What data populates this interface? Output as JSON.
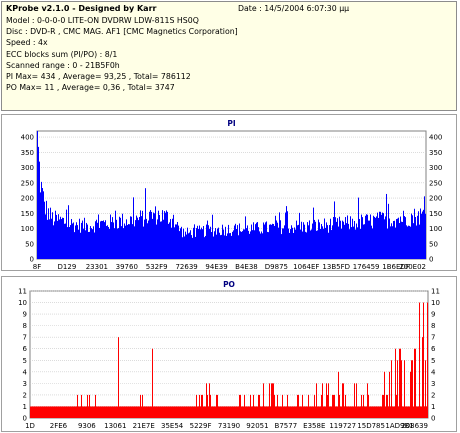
{
  "info": {
    "title": "KProbe v2.1.0 - Designed by Karr",
    "date": "Date : 14/5/2004 6:07:30 μμ",
    "lines": [
      "Model : 0-0-0-0 LITE-ON DVDRW LDW-811S   HS0Q",
      "Disc : DVD-R , CMC MAG. AF1 [CMC Magnetics Corporation]",
      "Speed : 4x",
      "ECC blocks sum (PI/PO) : 8/1",
      "Scanned range : 0 - 21B5F0h",
      "PI Max= 434 , Average= 93,25 , Total= 786112",
      "PO Max= 11 , Average= 0,36 , Total= 3747"
    ]
  },
  "chart_data": [
    {
      "type": "area",
      "title": "PI",
      "ylim": [
        0,
        420
      ],
      "yticks": [
        0,
        50,
        100,
        150,
        200,
        250,
        300,
        350,
        400
      ],
      "yticks_labels": [
        "0",
        "50",
        "100",
        "150",
        "200",
        "250",
        "300",
        "350",
        "400"
      ],
      "xtick_labels": [
        "8F",
        "D129",
        "23301",
        "39760",
        "532F9",
        "72639",
        "94E39",
        "B4E38",
        "D9875",
        "1064EF",
        "13B5FD",
        "176459",
        "1B6EDF",
        "200E02"
      ],
      "color": "#0000ff",
      "grid": true,
      "x": [
        0,
        0.004,
        0.008,
        0.012,
        0.02,
        0.03,
        0.04,
        0.06,
        0.08,
        0.1,
        0.13,
        0.16,
        0.2,
        0.24,
        0.28,
        0.3,
        0.32,
        0.34,
        0.36,
        0.38,
        0.4,
        0.44,
        0.48,
        0.52,
        0.56,
        0.6,
        0.64,
        0.68,
        0.72,
        0.76,
        0.8,
        0.84,
        0.88,
        0.92,
        0.96,
        1.0
      ],
      "y": [
        420,
        320,
        260,
        220,
        175,
        150,
        135,
        130,
        120,
        115,
        112,
        118,
        125,
        130,
        140,
        150,
        145,
        140,
        110,
        85,
        90,
        95,
        100,
        100,
        102,
        105,
        110,
        108,
        112,
        115,
        120,
        125,
        130,
        135,
        140,
        150
      ]
    },
    {
      "type": "bar",
      "title": "PO",
      "ylim": [
        0,
        11
      ],
      "yticks": [
        0,
        1,
        2,
        3,
        4,
        5,
        6,
        7,
        8,
        9,
        10,
        11
      ],
      "yticks_labels": [
        "0",
        "1",
        "2",
        "3",
        "4",
        "5",
        "6",
        "7",
        "8",
        "9",
        "10",
        "11"
      ],
      "xtick_labels": [
        "1D",
        "2FE6",
        "9306",
        "13061",
        "21E7E",
        "35E54",
        "5229F",
        "73190",
        "92051",
        "B7577",
        "E358E",
        "119727",
        "15D785",
        "1AD9B1",
        "208639"
      ],
      "color": "#ff0000",
      "grid": true,
      "x": [
        0,
        0.05,
        0.1,
        0.15,
        0.2,
        0.25,
        0.3,
        0.35,
        0.4,
        0.45,
        0.5,
        0.55,
        0.6,
        0.65,
        0.7,
        0.75,
        0.8,
        0.85,
        0.9,
        0.92,
        0.94,
        0.96,
        0.98,
        1.0
      ],
      "y": [
        1,
        1,
        1,
        2,
        1,
        1,
        2,
        1,
        1,
        3,
        1,
        2,
        3,
        2,
        2,
        3,
        3,
        3,
        4,
        5,
        6,
        8,
        10,
        11
      ]
    }
  ]
}
